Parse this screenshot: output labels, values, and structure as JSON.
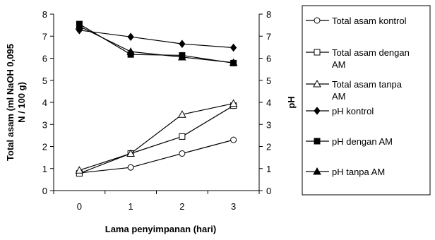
{
  "chart_data": {
    "type": "line",
    "title": "",
    "x": [
      0,
      1,
      2,
      3
    ],
    "xlabel": "Lama penyimpanan (hari)",
    "ylabel_left_lines": [
      "Total asam (ml NaOH 0,095",
      "N / 100 g)"
    ],
    "ylabel_right": "pH",
    "xlim": [
      -0.5,
      3.5
    ],
    "ylim_left": [
      0,
      8
    ],
    "ylim_right": [
      0,
      8
    ],
    "x_ticks": [
      "0",
      "1",
      "2",
      "3"
    ],
    "y_ticks_left": [
      "0",
      "1",
      "2",
      "3",
      "4",
      "5",
      "6",
      "7",
      "8"
    ],
    "y_ticks_right": [
      "0",
      "1",
      "2",
      "3",
      "4",
      "5",
      "6",
      "7",
      "8"
    ],
    "grid": false,
    "legend_position": "right",
    "series": [
      {
        "name": "Total asam kontrol",
        "label_lines": [
          "Total asam kontrol"
        ],
        "marker": "circle-open",
        "color": "#000000",
        "values": [
          0.8,
          1.05,
          1.68,
          2.3
        ]
      },
      {
        "name": "Total asam dengan AM",
        "label_lines": [
          "Total asam dengan",
          "AM"
        ],
        "marker": "square-open",
        "color": "#000000",
        "values": [
          0.78,
          1.68,
          2.45,
          3.85
        ]
      },
      {
        "name": "Total asam tanpa AM",
        "label_lines": [
          "Total asam tanpa",
          "AM"
        ],
        "marker": "triangle-open",
        "color": "#000000",
        "values": [
          0.92,
          1.68,
          3.45,
          3.95
        ]
      },
      {
        "name": "pH kontrol",
        "label_lines": [
          "pH kontrol"
        ],
        "marker": "diamond-filled",
        "color": "#000000",
        "values": [
          7.27,
          6.97,
          6.65,
          6.48
        ]
      },
      {
        "name": "pH dengan AM",
        "label_lines": [
          "pH dengan AM"
        ],
        "marker": "square-filled",
        "color": "#000000",
        "values": [
          7.55,
          6.17,
          6.13,
          5.78
        ]
      },
      {
        "name": "pH tanpa AM",
        "label_lines": [
          "pH tanpa AM"
        ],
        "marker": "triangle-filled",
        "color": "#000000",
        "values": [
          7.45,
          6.3,
          6.05,
          5.8
        ]
      }
    ]
  }
}
